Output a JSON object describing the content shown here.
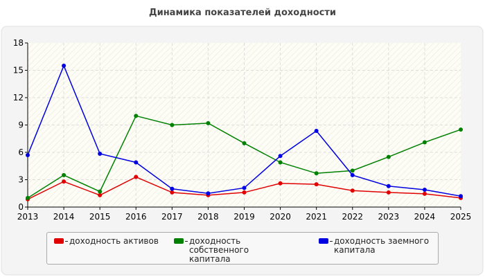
{
  "chart_data": {
    "type": "line",
    "title": "Динамика показателей доходности",
    "categories": [
      "2013",
      "2014",
      "2015",
      "2016",
      "2017",
      "2018",
      "2019",
      "2020",
      "2021",
      "2022",
      "2023",
      "2024",
      "2025"
    ],
    "ylim": [
      0,
      18
    ],
    "yticks": [
      0,
      3,
      6,
      9,
      12,
      15,
      18
    ],
    "grid": true,
    "series": [
      {
        "name": "доходность активов",
        "color": "#e00000",
        "values": [
          0.85,
          2.8,
          1.3,
          3.3,
          1.6,
          1.3,
          1.6,
          2.6,
          2.5,
          1.8,
          1.6,
          1.45,
          1.0
        ]
      },
      {
        "name": "доходность собственного капитала",
        "color": "#008000",
        "values": [
          1.0,
          3.5,
          1.7,
          10.0,
          9.0,
          9.2,
          7.0,
          4.9,
          3.7,
          4.0,
          5.5,
          7.1,
          8.5
        ]
      },
      {
        "name": "доходность заемного капитала",
        "color": "#0000e0",
        "values": [
          5.7,
          15.5,
          5.85,
          4.9,
          2.0,
          1.5,
          2.1,
          5.6,
          8.35,
          3.5,
          2.3,
          1.9,
          1.2
        ]
      }
    ]
  }
}
